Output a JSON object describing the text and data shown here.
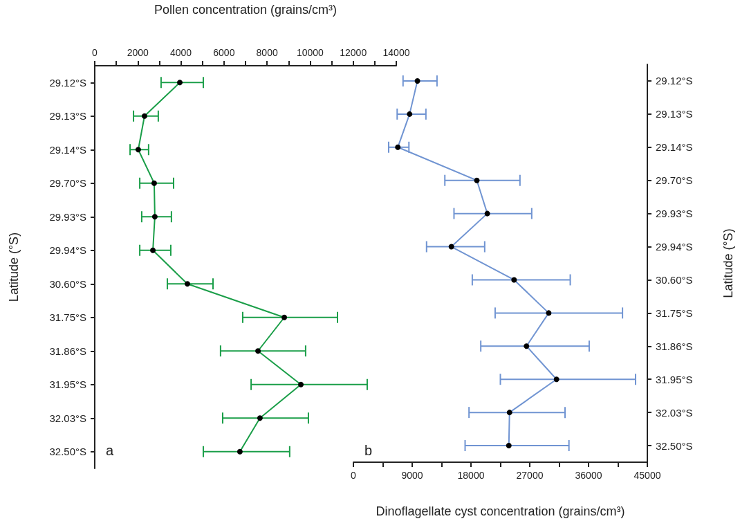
{
  "chart_data": [
    {
      "type": "line",
      "orientation": "horizontal",
      "x2label": "Pollen concentration (grains/cm³)",
      "ylabel": "Latitude (°S)",
      "categories": [
        "29.12°S",
        "29.13°S",
        "29.14°S",
        "29.70°S",
        "29.93°S",
        "29.94°S",
        "30.60°S",
        "31.75°S",
        "31.86°S",
        "31.95°S",
        "32.03°S",
        "32.50°S"
      ],
      "series": [
        {
          "axis": "x2",
          "color": "#1a9e48",
          "values": [
            3950,
            2310,
            2020,
            2760,
            2790,
            2700,
            4300,
            8800,
            7580,
            9570,
            7670,
            6740
          ],
          "errors": [
            [
              3080,
              5040
            ],
            [
              1800,
              2950
            ],
            [
              1640,
              2500
            ],
            [
              2090,
              3660
            ],
            [
              2180,
              3560
            ],
            [
              2090,
              3530
            ],
            [
              3370,
              5490
            ],
            [
              6870,
              11270
            ],
            [
              5840,
              9790
            ],
            [
              7260,
              12650
            ],
            [
              5940,
              9920
            ],
            [
              5040,
              9050
            ]
          ]
        }
      ],
      "x2lim": [
        0,
        14000
      ],
      "x2ticks": [
        0,
        {
          "value": 1000,
          "label": null
        },
        2000,
        {
          "value": 3000,
          "label": null
        },
        4000,
        {
          "value": 5000,
          "label": null
        },
        6000,
        {
          "value": 7000,
          "label": null
        },
        8000,
        {
          "value": 9000,
          "label": null
        },
        10000,
        {
          "value": 11000,
          "label": null
        },
        12000,
        {
          "value": 13000,
          "label": null
        },
        14000
      ],
      "marker": "circle",
      "annotations": [
        "a"
      ]
    },
    {
      "type": "line",
      "orientation": "horizontal",
      "xlabel": "Dinoflagellate cyst concentration (grains/cm³)",
      "ylabel": "Latitude (°S)",
      "categories": [
        "29.12°S",
        "29.13°S",
        "29.14°S",
        "29.70°S",
        "29.93°S",
        "29.94°S",
        "30.60°S",
        "31.75°S",
        "31.86°S",
        "31.95°S",
        "32.03°S",
        "32.50°S"
      ],
      "series": [
        {
          "color": "#7094d2",
          "values": [
            9800,
            8600,
            6800,
            18900,
            20500,
            15000,
            24600,
            29900,
            26500,
            31100,
            23900,
            23800
          ],
          "errors": [
            [
              7600,
              12800
            ],
            [
              6700,
              11100
            ],
            [
              5400,
              8500
            ],
            [
              14000,
              25500
            ],
            [
              15400,
              27300
            ],
            [
              11200,
              20100
            ],
            [
              18200,
              33200
            ],
            [
              21700,
              41200
            ],
            [
              19500,
              36100
            ],
            [
              22500,
              43200
            ],
            [
              17700,
              32400
            ],
            [
              17100,
              33000
            ]
          ]
        }
      ],
      "xlim": [
        0,
        45000
      ],
      "xticks": [
        0,
        {
          "value": 4500,
          "label": null
        },
        9000,
        {
          "value": 13500,
          "label": null
        },
        18000,
        {
          "value": 22500,
          "label": null
        },
        27000,
        {
          "value": 31500,
          "label": null
        },
        36000,
        {
          "value": 40500,
          "label": null
        },
        45000
      ],
      "marker": "circle",
      "annotations": [
        "b"
      ]
    }
  ]
}
